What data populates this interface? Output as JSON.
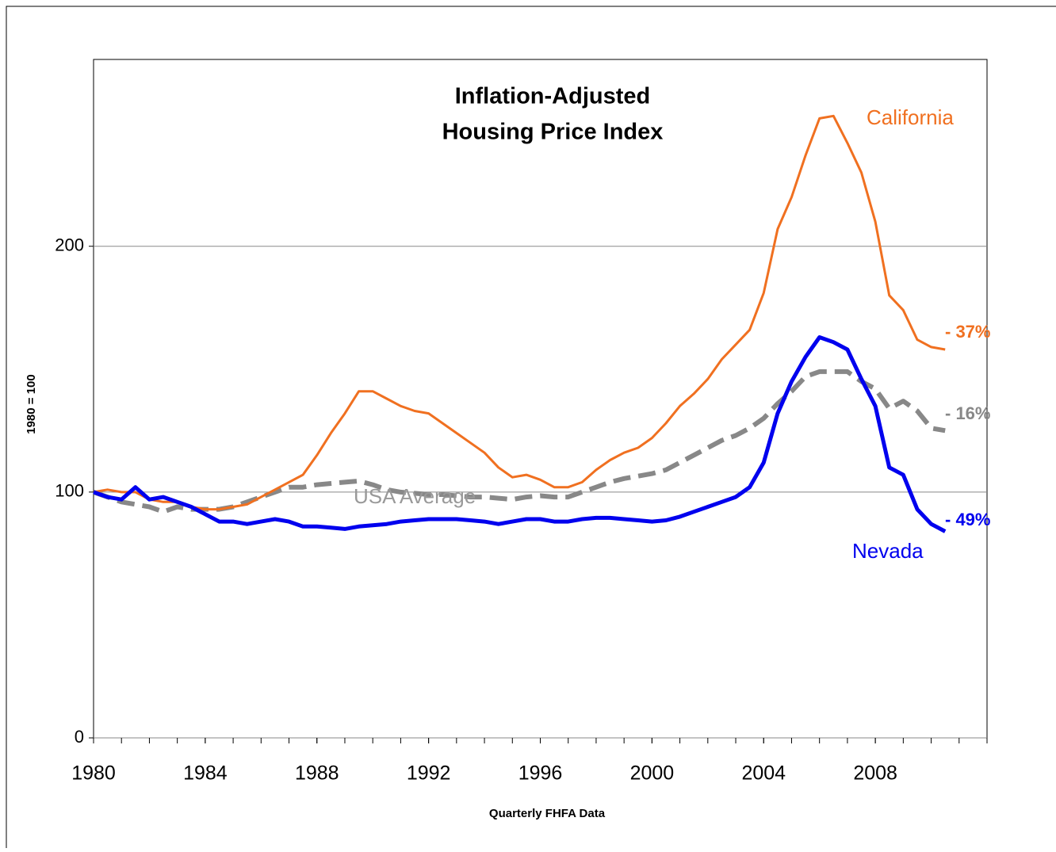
{
  "chart_data": {
    "type": "line",
    "title": [
      "Inflation-Adjusted",
      "Housing Price Index"
    ],
    "y_label": "1980 = 100",
    "x_label": "Quarterly FHFA Data",
    "xlim": [
      1980,
      2012
    ],
    "xticks": [
      1980,
      1984,
      1988,
      1992,
      1996,
      2000,
      2004,
      2008
    ],
    "xminor_ticks": [
      1980,
      1981,
      1982,
      1983,
      1984,
      1985,
      1986,
      1987,
      1988,
      1989,
      1990,
      1991,
      1992,
      1993,
      1994,
      1995,
      1996,
      1997,
      1998,
      1999,
      2000,
      2001,
      2002,
      2003,
      2004,
      2005,
      2006,
      2007,
      2008,
      2009,
      2010,
      2011,
      2012
    ],
    "ylim": [
      0,
      276
    ],
    "yticks": [
      0,
      100,
      200
    ],
    "grid": true,
    "x": [
      1980,
      1980.5,
      1981,
      1981.5,
      1982,
      1982.5,
      1983,
      1983.5,
      1984,
      1984.5,
      1985,
      1985.5,
      1986,
      1986.5,
      1987,
      1987.5,
      1988,
      1988.5,
      1989,
      1989.5,
      1990,
      1990.5,
      1991,
      1991.5,
      1992,
      1992.5,
      1993,
      1993.5,
      1994,
      1994.5,
      1995,
      1995.5,
      1996,
      1996.5,
      1997,
      1997.5,
      1998,
      1998.5,
      1999,
      1999.5,
      2000,
      2000.5,
      2001,
      2001.5,
      2002,
      2002.5,
      2003,
      2003.5,
      2004,
      2004.5,
      2005,
      2005.5,
      2006,
      2006.5,
      2007,
      2007.5,
      2008,
      2008.5,
      2009,
      2009.5,
      2010,
      2010.5
    ],
    "series": [
      {
        "name": "USA Average",
        "color": "#888888",
        "dashed": true,
        "values": [
          100,
          98,
          96,
          95,
          94,
          92,
          94,
          93,
          93,
          93,
          94,
          96,
          98,
          100,
          102,
          102,
          103,
          103.5,
          104,
          104.5,
          103,
          101,
          100,
          99.5,
          99,
          99,
          98.5,
          98,
          98,
          97.5,
          97,
          98,
          98.5,
          98,
          98,
          100,
          102,
          104,
          105.5,
          106.5,
          107.5,
          109,
          112,
          115,
          118,
          121,
          123,
          126,
          130,
          136,
          141,
          147,
          149,
          149,
          149,
          145,
          142,
          134,
          137,
          133,
          126,
          125
        ]
      },
      {
        "name": "California",
        "color": "#f07020",
        "dashed": false,
        "values": [
          100,
          101,
          100,
          100,
          97,
          96,
          96,
          94,
          93,
          93,
          94,
          95,
          98,
          101,
          104,
          107,
          115,
          124,
          132,
          141,
          141,
          138,
          135,
          133,
          132,
          128,
          124,
          120,
          116,
          110,
          106,
          107,
          105,
          102,
          102,
          104,
          109,
          113,
          116,
          118,
          122,
          128,
          135,
          140,
          146,
          154,
          160,
          166,
          181,
          207,
          220,
          237,
          252,
          253,
          242,
          230,
          210,
          180,
          174,
          162,
          159,
          158
        ]
      },
      {
        "name": "Nevada",
        "color": "#0000ee",
        "dashed": false,
        "values": [
          100,
          98,
          97,
          102,
          97,
          98,
          96,
          94,
          91,
          88,
          88,
          87,
          88,
          89,
          88,
          86,
          86,
          85.5,
          85,
          86,
          86.5,
          87,
          88,
          88.5,
          89,
          89,
          89,
          88.5,
          88,
          87,
          88,
          89,
          89,
          88,
          88,
          89,
          89.5,
          89.5,
          89,
          88.5,
          88,
          88.5,
          90,
          92,
          94,
          96,
          98,
          102,
          112,
          132,
          145,
          155,
          163,
          161,
          158,
          146,
          135,
          110,
          107,
          93,
          87,
          84
        ]
      }
    ],
    "annotations": [
      {
        "text": "California",
        "color": "#f07020"
      },
      {
        "text": "Nevada",
        "color": "#0000ee"
      },
      {
        "text": "USA Average",
        "color": "#999999"
      },
      {
        "text": "- 37%",
        "color": "#f07020"
      },
      {
        "text": "- 16%",
        "color": "#888888"
      },
      {
        "text": "- 49%",
        "color": "#0000ee"
      }
    ]
  }
}
